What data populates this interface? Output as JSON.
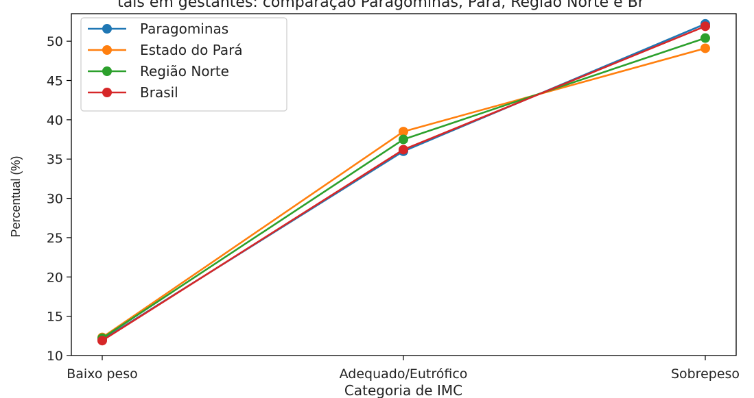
{
  "chart_data": {
    "type": "line",
    "title": "tais em gestantes: comparação Paragominas, Pará, Região Norte e Br",
    "xlabel": "Categoria de IMC",
    "ylabel": "Percentual (%)",
    "categories": [
      "Baixo peso",
      "Adequado/Eutrófico",
      "Sobrepeso"
    ],
    "ylim": [
      10,
      53.5
    ],
    "yticks": [
      10,
      15,
      20,
      25,
      30,
      35,
      40,
      45,
      50
    ],
    "grid": false,
    "legend_position": "top-left",
    "series": [
      {
        "name": "Paragominas",
        "color": "#1f77b4",
        "values": [
          12.0,
          36.0,
          52.2
        ]
      },
      {
        "name": "Estado do Pará",
        "color": "#ff7f0e",
        "values": [
          12.3,
          38.5,
          49.1
        ]
      },
      {
        "name": "Região Norte",
        "color": "#2ca02c",
        "values": [
          12.2,
          37.5,
          50.4
        ]
      },
      {
        "name": "Brasil",
        "color": "#d62728",
        "values": [
          11.9,
          36.2,
          51.9
        ]
      }
    ]
  }
}
